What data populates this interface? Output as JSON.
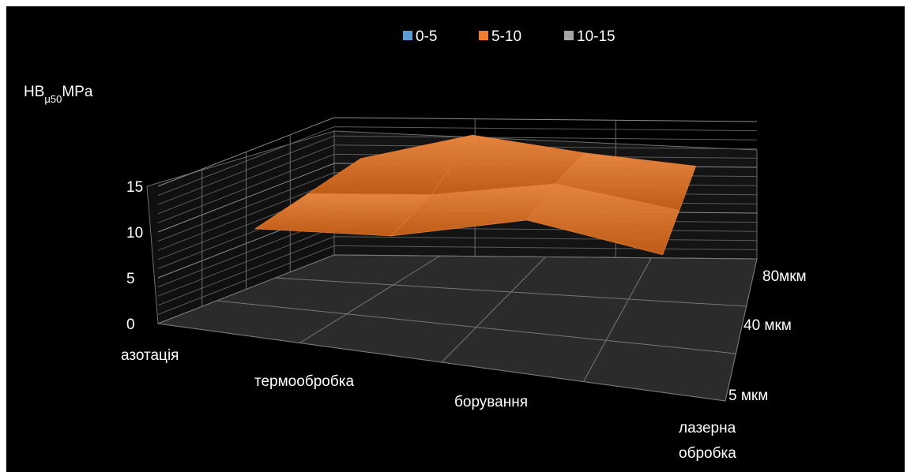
{
  "chart_data": {
    "type": "surface-3d",
    "title": "",
    "ylabel_main": "HB",
    "ylabel_sub": "μ50",
    "ylabel_unit": "MPa",
    "categories": [
      "азотація",
      "термообробка",
      "борування",
      "лазерна обробка"
    ],
    "categories_display": [
      [
        "азотація"
      ],
      [
        "термообробка"
      ],
      [
        "борування"
      ],
      [
        "лазерна",
        "обробка"
      ]
    ],
    "depths": [
      "5 мкм",
      "40 мкм",
      "80мкм"
    ],
    "zlim": [
      0,
      15
    ],
    "zticks": [
      "0",
      "5",
      "10",
      "15"
    ],
    "legend": [
      {
        "name": "0-5",
        "color": "#5B9BD5"
      },
      {
        "name": "5-10",
        "color": "#ED7D31"
      },
      {
        "name": "10-15",
        "color": "#A5A5A5"
      }
    ],
    "values_by_category": {
      "азотація": [
        10,
        11,
        12
      ],
      "термообробка": [
        11,
        12,
        15
      ],
      "борування": [
        14.5,
        14.3,
        13.5
      ],
      "лазерна обробка": [
        12.5,
        12.5,
        12.5
      ]
    },
    "legend_placement": "top",
    "grid": true
  }
}
